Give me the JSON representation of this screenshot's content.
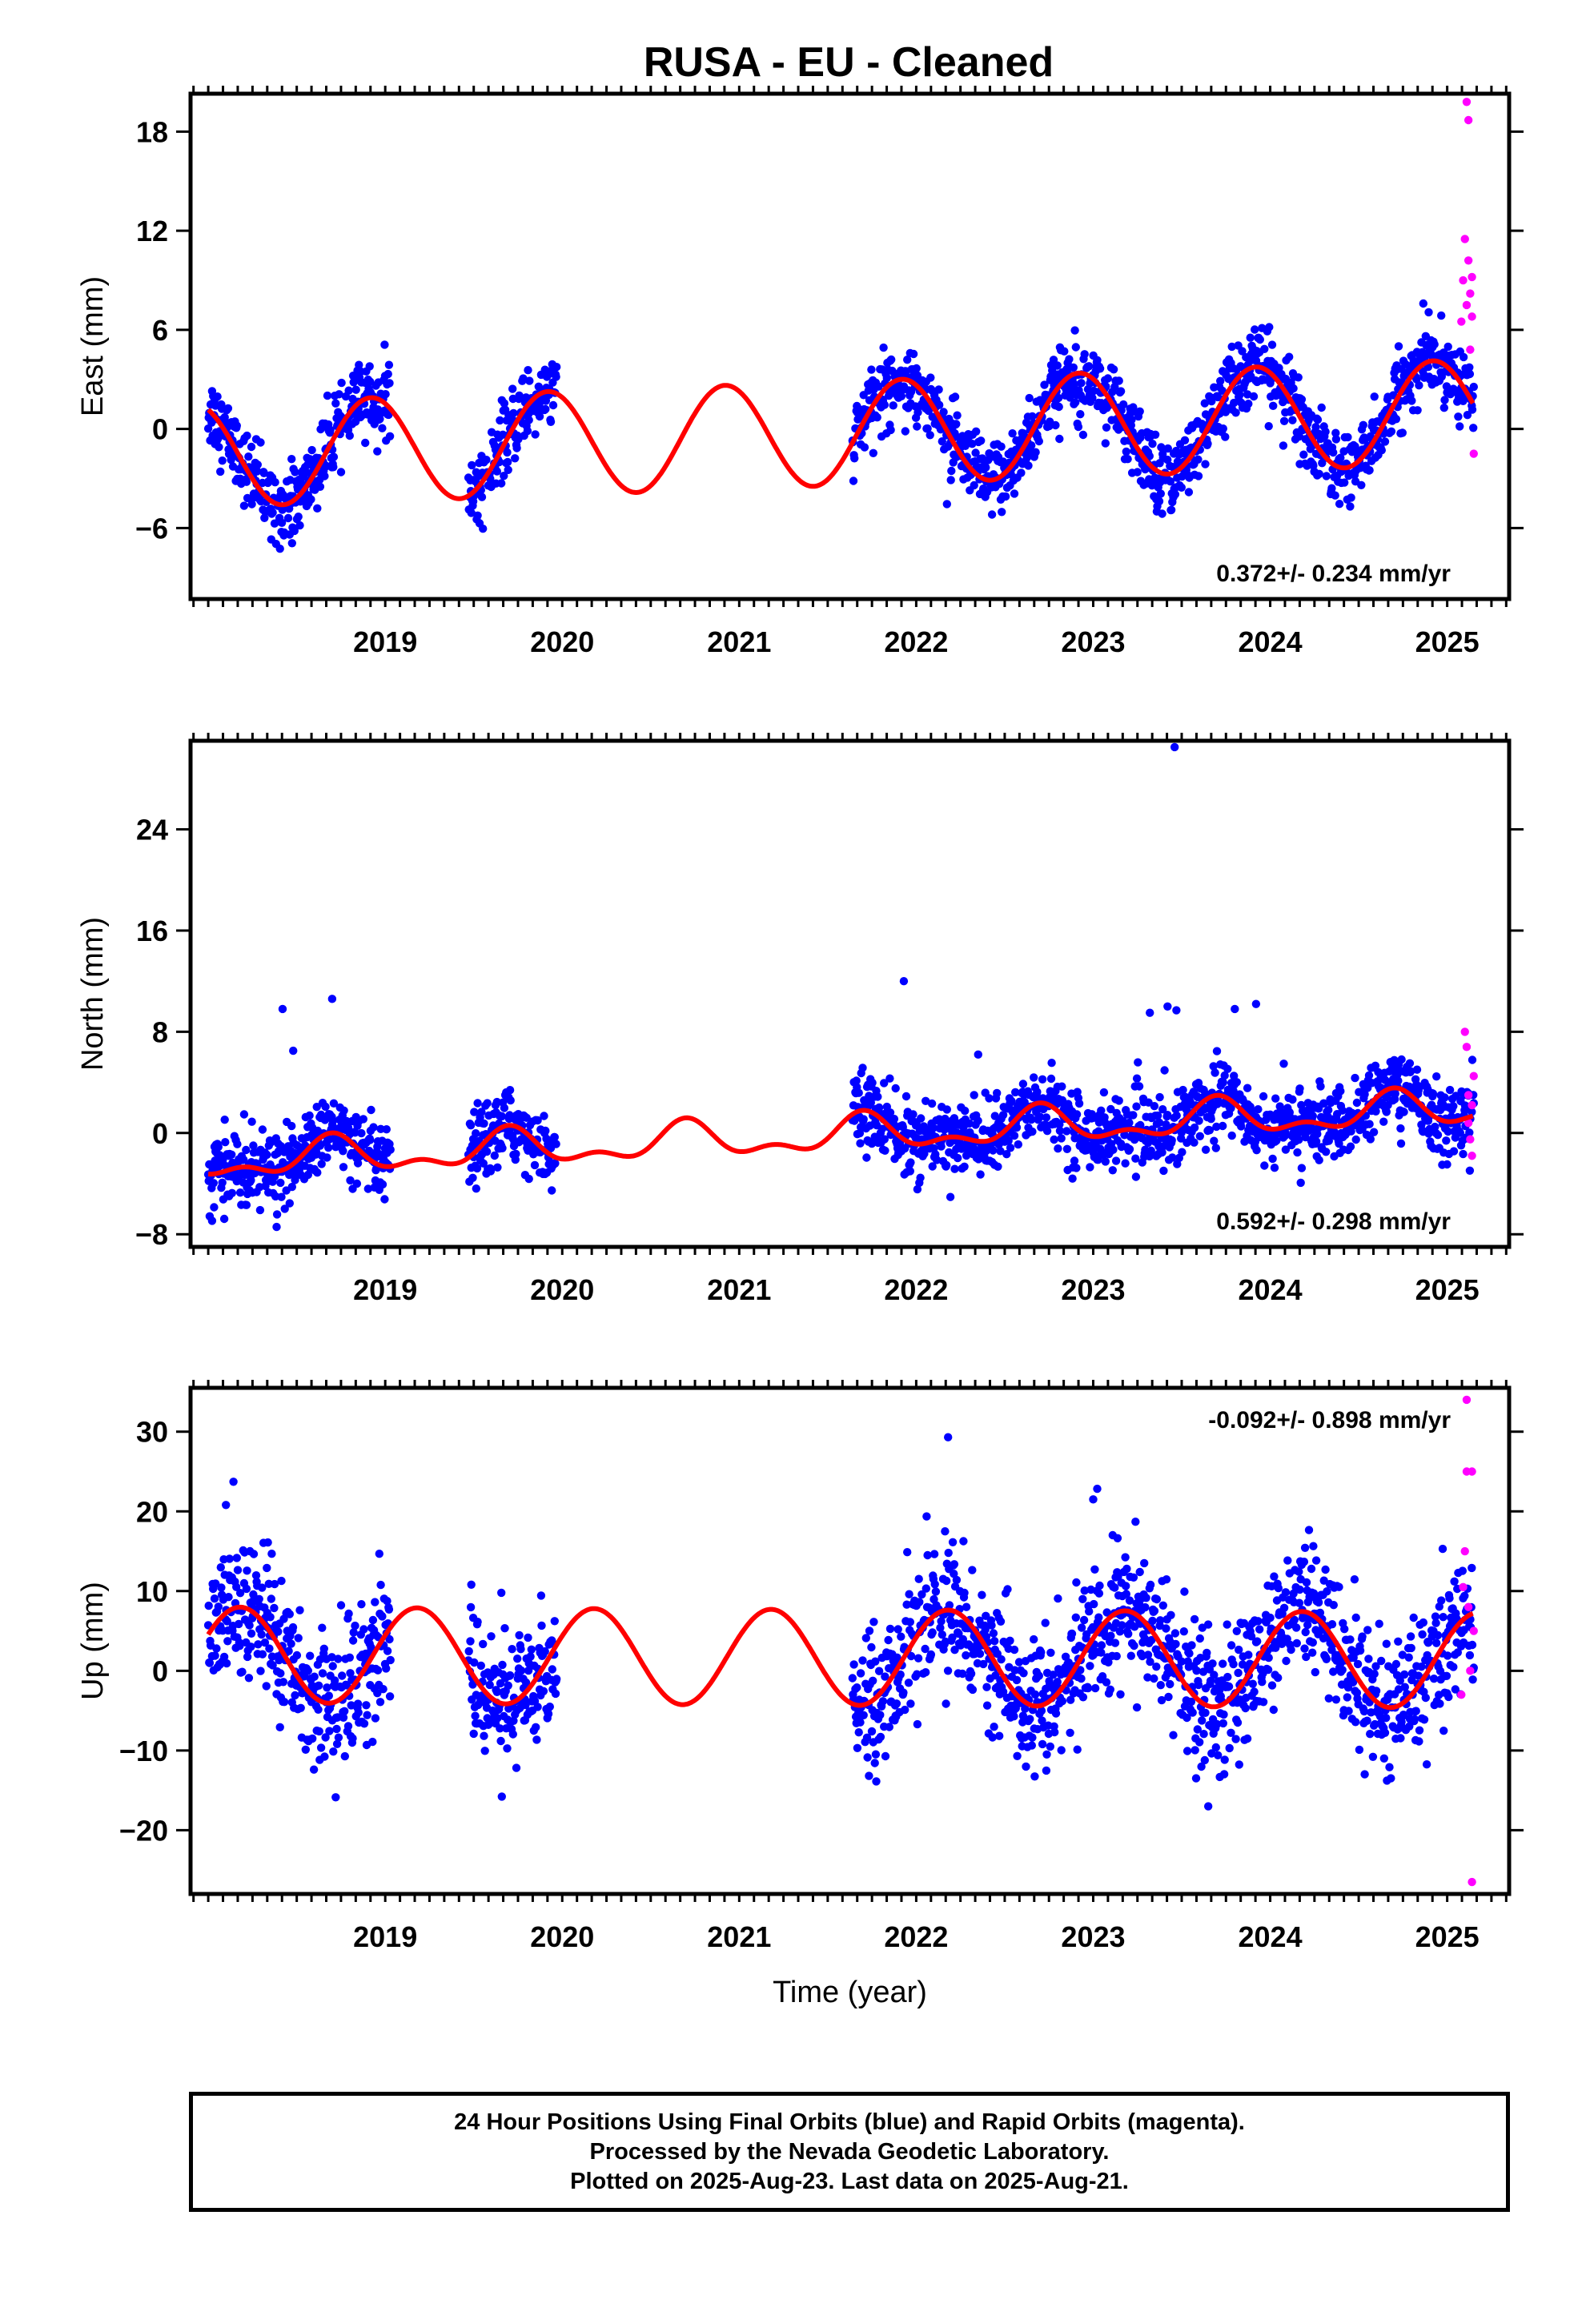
{
  "figure_title": "RUSA  - EU - Cleaned",
  "footer": {
    "line1": "24 Hour Positions Using Final Orbits (blue) and Rapid Orbits (magenta).",
    "line2": "Processed by the Nevada Geodetic Laboratory.",
    "line3": "Plotted on 2025-Aug-23. Last data on 2025-Aug-21."
  },
  "colors": {
    "final_orbits": "#0000ff",
    "rapid_orbits": "#ff00ff",
    "model_fit": "#ff0000",
    "axes": "#000000"
  },
  "chart_data": [
    {
      "type": "scatter",
      "panel": "east",
      "ylabel": "East (mm)",
      "xlabel": "",
      "xlim": [
        2018.4,
        2025.85
      ],
      "ylim": [
        -10.3,
        20.3
      ],
      "yticks": [
        -6,
        0,
        6,
        12,
        18
      ],
      "xticks": [
        2019,
        2020,
        2021,
        2022,
        2023,
        2024,
        2025
      ],
      "annotation": "0.372+/- 0.234 mm/yr",
      "annotation_position": "bottom-right",
      "grid": false,
      "data_segments": [
        [
          2018.5,
          2019.53
        ],
        [
          2019.97,
          2020.47
        ],
        [
          2022.14,
          2025.65
        ]
      ],
      "series": [
        {
          "name": "",
          "kind": "points",
          "color": "#0000ff",
          "model": {
            "t0": 2018.5,
            "offset": -1.6,
            "rate": 0.372,
            "amp": 3.15,
            "phase_year": 2019.42,
            "scatter": 1.1
          }
        },
        {
          "name": "",
          "kind": "points",
          "color": "#ff00ff",
          "x": [
            2025.58,
            2025.59,
            2025.6,
            2025.61,
            2025.61,
            2025.62,
            2025.62,
            2025.63,
            2025.63,
            2025.64,
            2025.64,
            2025.65
          ],
          "values": [
            6.5,
            9.0,
            11.5,
            7.5,
            19.8,
            10.2,
            18.7,
            8.2,
            4.8,
            6.8,
            9.2,
            -1.5
          ]
        },
        {
          "name": "",
          "kind": "line",
          "color": "#ff0000",
          "model": {
            "t0": 2018.5,
            "offset": -1.6,
            "rate": 0.372,
            "amp": 3.15,
            "phase_year": 2019.42
          }
        }
      ]
    },
    {
      "type": "scatter",
      "panel": "north",
      "ylabel": "North (mm)",
      "xlabel": "",
      "xlim": [
        2018.4,
        2025.85
      ],
      "ylim": [
        -9,
        31
      ],
      "yticks": [
        -8,
        0,
        8,
        16,
        24
      ],
      "xticks": [
        2019,
        2020,
        2021,
        2022,
        2023,
        2024,
        2025
      ],
      "annotation": "0.592+/- 0.298 mm/yr",
      "annotation_position": "bottom-right",
      "grid": false,
      "data_segments": [
        [
          2018.5,
          2019.53
        ],
        [
          2019.97,
          2020.47
        ],
        [
          2022.14,
          2025.65
        ]
      ],
      "series": [
        {
          "name": "",
          "kind": "points",
          "color": "#0000ff",
          "model": {
            "t0": 2018.5,
            "offset": -2.3,
            "rate": 0.592,
            "amp": 1.2,
            "phase_year": 2019.2,
            "amp2": 0.7,
            "scatter": 1.4
          },
          "outliers_x": [
            2018.92,
            2018.98,
            2019.2,
            2022.43,
            2022.85,
            2023.82,
            2023.92,
            2023.96,
            2024.3,
            2024.42,
            2023.97
          ],
          "outliers_y": [
            9.8,
            6.5,
            10.6,
            12.0,
            6.2,
            9.5,
            10.0,
            30.5,
            9.8,
            10.2,
            9.7
          ]
        },
        {
          "name": "",
          "kind": "points",
          "color": "#ff00ff",
          "x": [
            2025.6,
            2025.61,
            2025.62,
            2025.62,
            2025.63,
            2025.64,
            2025.64,
            2025.65
          ],
          "values": [
            8.0,
            6.8,
            3.0,
            0.8,
            -0.5,
            2.2,
            -1.8,
            4.5
          ]
        },
        {
          "name": "",
          "kind": "line",
          "color": "#ff0000",
          "model": {
            "t0": 2018.5,
            "offset": -2.3,
            "rate": 0.592,
            "amp": 1.2,
            "phase_year": 2019.2,
            "amp2": 0.7
          }
        }
      ]
    },
    {
      "type": "scatter",
      "panel": "up",
      "ylabel": "Up (mm)",
      "xlabel": "Time (year)",
      "xlim": [
        2018.4,
        2025.85
      ],
      "ylim": [
        -28,
        35.5
      ],
      "yticks": [
        -20,
        -10,
        0,
        10,
        20,
        30
      ],
      "xticks": [
        2019,
        2020,
        2021,
        2022,
        2023,
        2024,
        2025
      ],
      "annotation": "-0.092+/- 0.898 mm/yr",
      "annotation_position": "top-right",
      "grid": false,
      "data_segments": [
        [
          2018.5,
          2019.53
        ],
        [
          2019.97,
          2020.47
        ],
        [
          2022.14,
          2025.65
        ]
      ],
      "series": [
        {
          "name": "",
          "kind": "points",
          "color": "#0000ff",
          "model": {
            "t0": 2018.5,
            "offset": 2.0,
            "rate": -0.092,
            "amp": 6.0,
            "phase_year": 2018.68,
            "scatter": 4.2
          },
          "outliers_x": [
            2022.68,
            2023.5,
            2018.6,
            2024.15
          ],
          "outliers_y": [
            29.3,
            21.5,
            20.8,
            -17.0
          ]
        },
        {
          "name": "",
          "kind": "points",
          "color": "#ff00ff",
          "x": [
            2025.58,
            2025.59,
            2025.6,
            2025.61,
            2025.61,
            2025.62,
            2025.63,
            2025.64,
            2025.64,
            2025.65
          ],
          "values": [
            -3.0,
            10.5,
            15.0,
            25.0,
            34.0,
            8.0,
            0.0,
            25.0,
            -26.5,
            5.0
          ]
        },
        {
          "name": "",
          "kind": "line",
          "color": "#ff0000",
          "model": {
            "t0": 2018.5,
            "offset": 2.0,
            "rate": -0.092,
            "amp": 6.0,
            "phase_year": 2018.68
          }
        }
      ]
    }
  ]
}
